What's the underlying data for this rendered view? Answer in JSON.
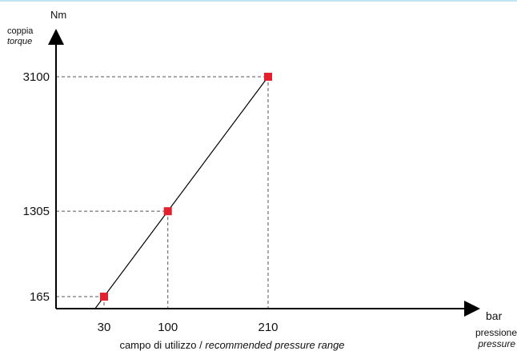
{
  "chart_data": {
    "type": "line",
    "title": "",
    "x_axis": {
      "unit": "bar",
      "label": "pressione",
      "label_en": "pressure",
      "ticks": [
        30,
        100,
        210
      ],
      "range_note": "campo di utilizzo",
      "range_note_en": "recommended pressure range"
    },
    "y_axis": {
      "unit": "Nm",
      "label": "coppia",
      "label_en": "torque",
      "ticks": [
        165,
        1305,
        3100
      ]
    },
    "series": [
      {
        "x": [
          30,
          100,
          210
        ],
        "y": [
          165,
          1305,
          3100
        ]
      }
    ],
    "xlim": [
      0,
      260
    ],
    "ylim": [
      0,
      3300
    ],
    "grid": false,
    "guide_lines": "dashed",
    "colors": {
      "line": "#000000",
      "marker": "#e5202e",
      "guide": "#555555",
      "header_rule": "#bfe4f4"
    }
  }
}
